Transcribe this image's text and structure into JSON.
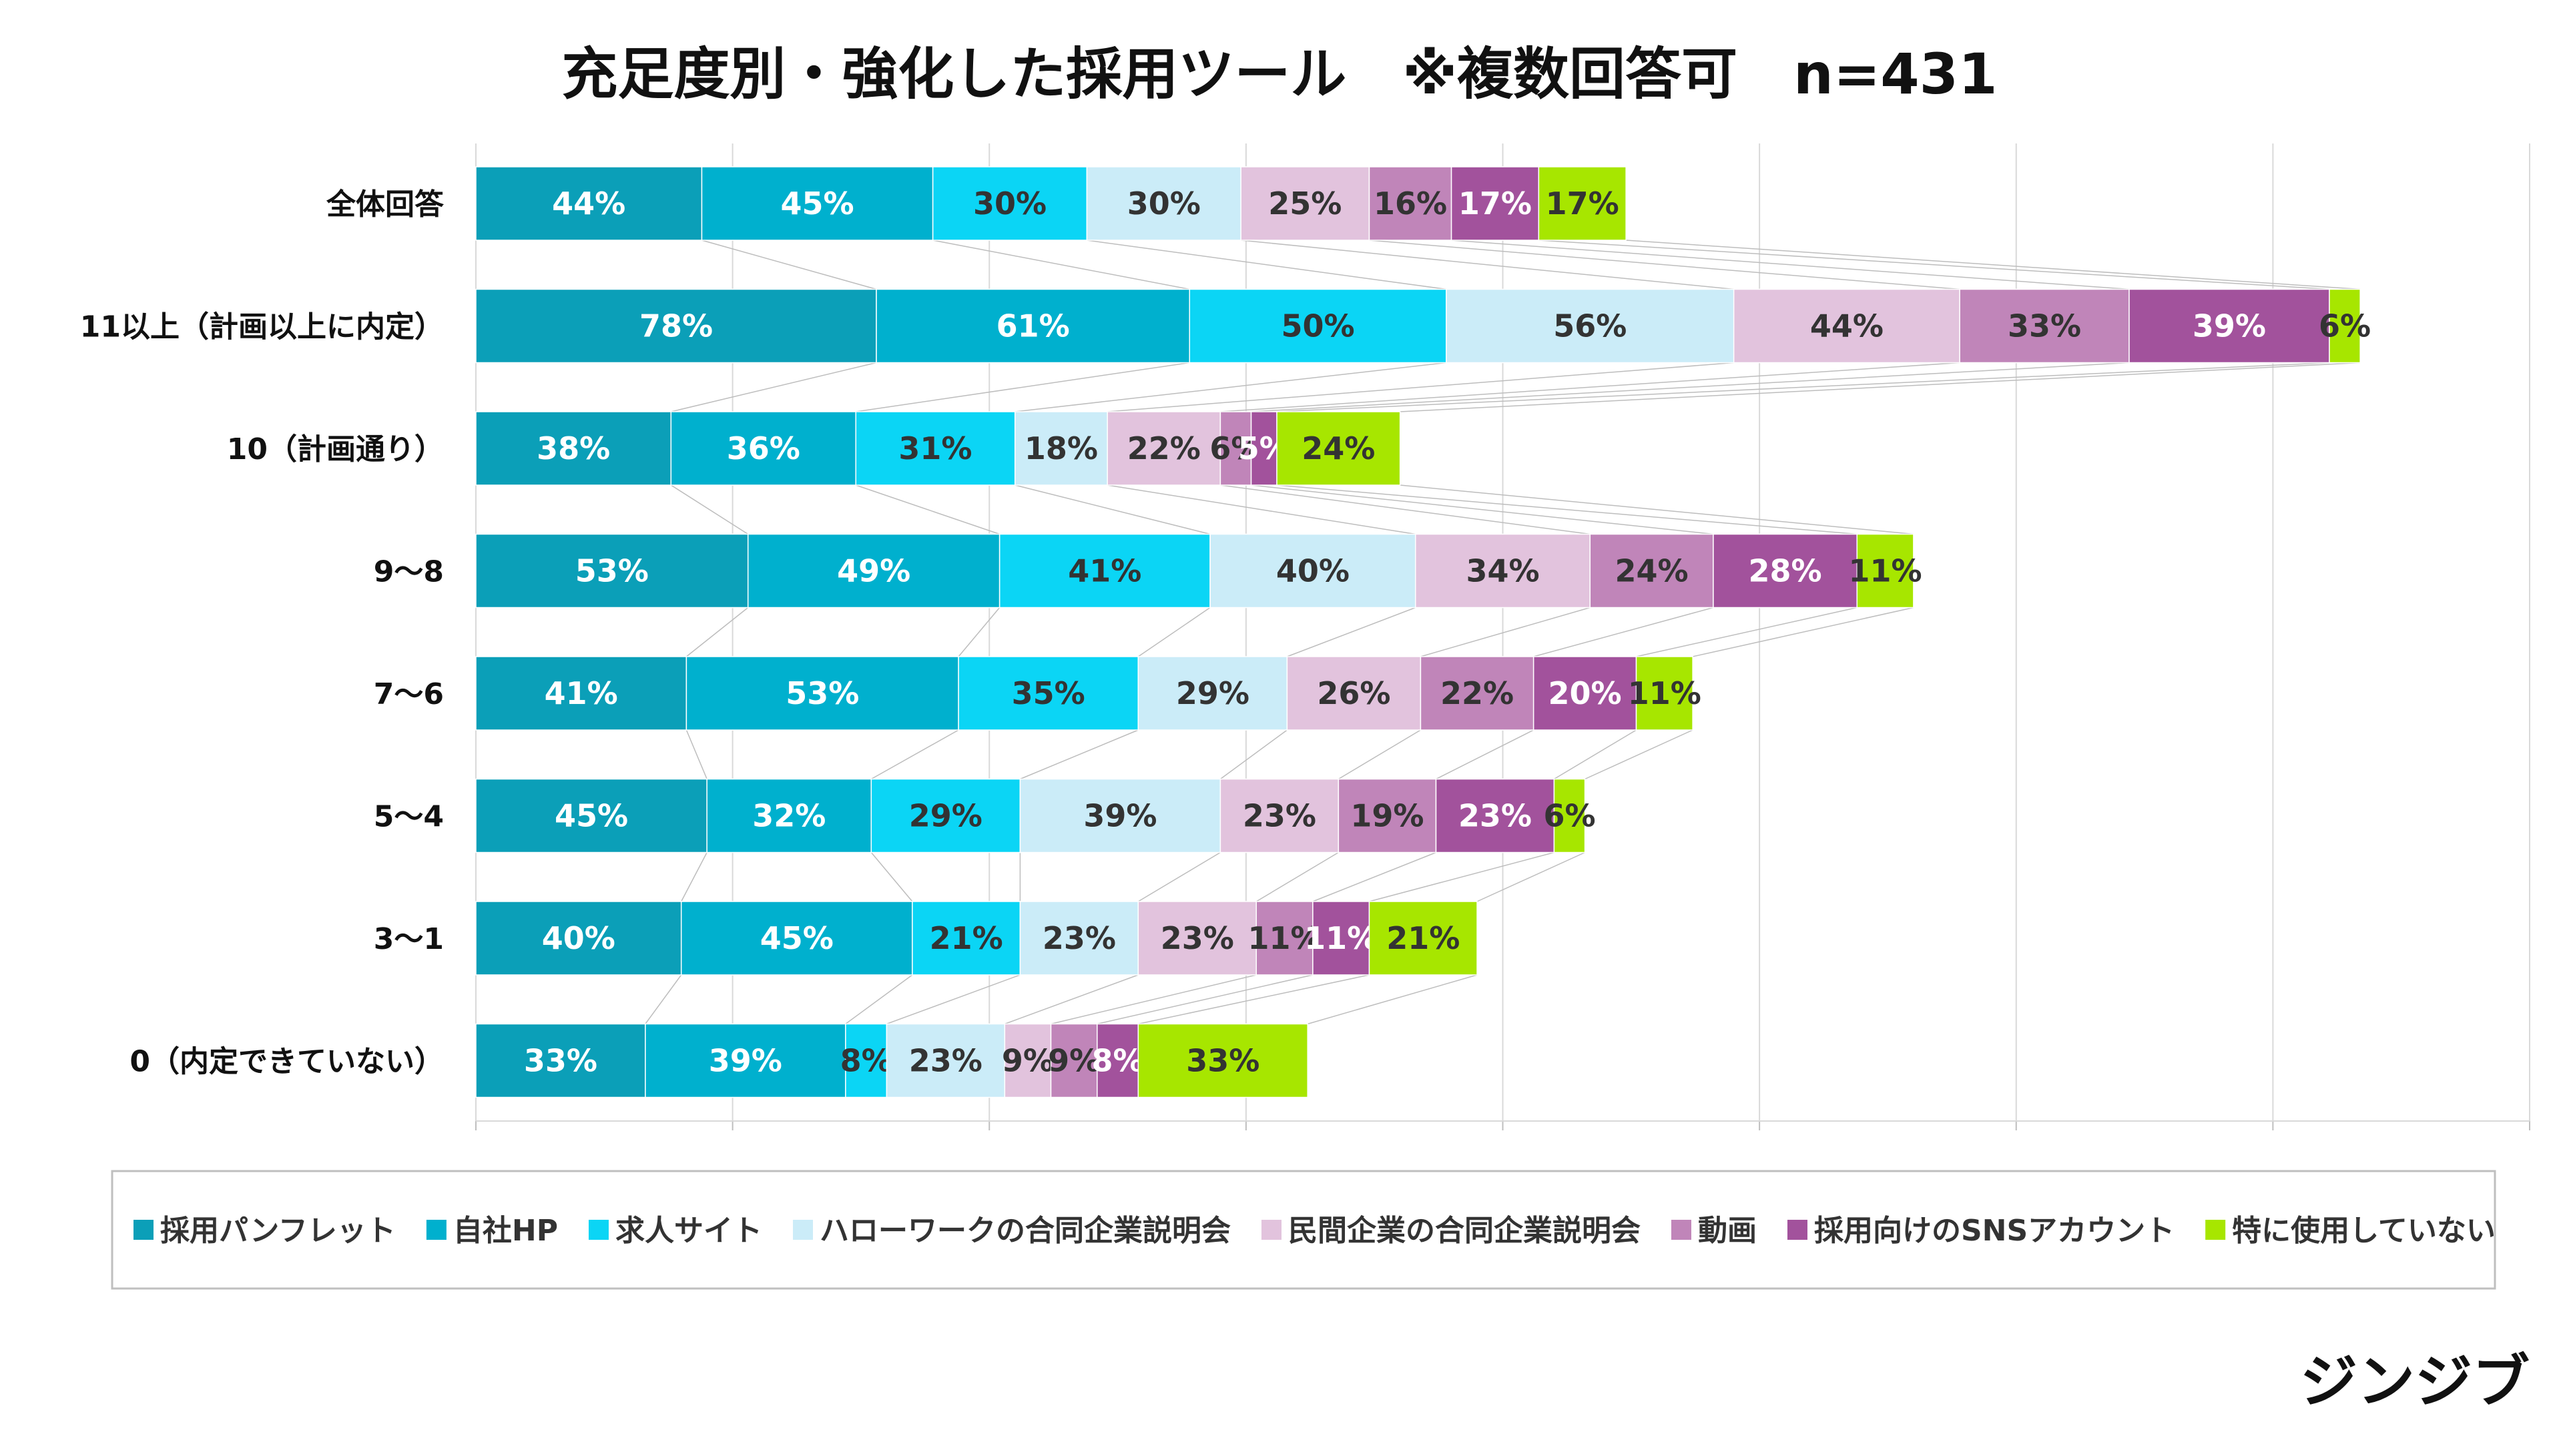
{
  "chart_data": {
    "type": "bar",
    "stacked": true,
    "orientation": "horizontal",
    "title": "充足度別・強化した採用ツール　※複数回答可　n=431",
    "categories": [
      "全体回答",
      "11以上（計画以上に内定）",
      "10（計画通り）",
      "9～8",
      "7～6",
      "5～4",
      "3～1",
      "0（内定できていない）"
    ],
    "series": [
      {
        "name": "採用パンフレット",
        "color": "#0B9FB8",
        "label_color": "#ffffff",
        "values": [
          44,
          78,
          38,
          53,
          41,
          45,
          40,
          33
        ]
      },
      {
        "name": "自社HP",
        "color": "#00B0CE",
        "label_color": "#ffffff",
        "values": [
          45,
          61,
          36,
          49,
          53,
          32,
          45,
          39
        ]
      },
      {
        "name": "求人サイト",
        "color": "#0BD5F5",
        "label_color": "#333333",
        "values": [
          30,
          50,
          31,
          41,
          35,
          29,
          21,
          8
        ]
      },
      {
        "name": "ハローワークの合同企業説明会",
        "color": "#CBECF8",
        "label_color": "#333333",
        "values": [
          30,
          56,
          18,
          40,
          29,
          39,
          23,
          23
        ]
      },
      {
        "name": "民間企業の合同企業説明会",
        "color": "#E2C3DD",
        "label_color": "#333333",
        "values": [
          25,
          44,
          22,
          34,
          26,
          23,
          23,
          9
        ]
      },
      {
        "name": "動画",
        "color": "#C085B9",
        "label_color": "#333333",
        "values": [
          16,
          33,
          6,
          24,
          22,
          19,
          11,
          9
        ]
      },
      {
        "name": "採用向けのSNSアカウント",
        "color": "#A2529C",
        "label_color": "#ffffff",
        "values": [
          17,
          39,
          5,
          28,
          20,
          23,
          11,
          8
        ]
      },
      {
        "name": "特に使用していない",
        "color": "#A7E600",
        "label_color": "#333333",
        "values": [
          17,
          6,
          24,
          11,
          11,
          6,
          21,
          33
        ]
      }
    ],
    "xlim": [
      0,
      400
    ],
    "grid": true,
    "series_lines": true,
    "legend_position": "bottom",
    "value_suffix": "%"
  },
  "brand": {
    "text": "ジンジブ"
  }
}
